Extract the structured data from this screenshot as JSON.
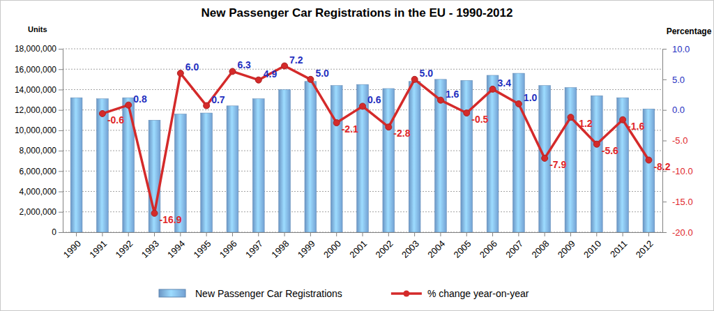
{
  "chart_data": {
    "type": "bar",
    "title": "New Passenger Car Registrations in the EU - 1990-2012",
    "y_label": "Units",
    "y2_label": "Percentage",
    "categories": [
      "1990",
      "1991",
      "1992",
      "1993",
      "1994",
      "1995",
      "1996",
      "1997",
      "1998",
      "1999",
      "2000",
      "2001",
      "2002",
      "2003",
      "2004",
      "2005",
      "2006",
      "2007",
      "2008",
      "2009",
      "2010",
      "2011",
      "2012"
    ],
    "series": [
      {
        "name": "New Passenger Car Registrations",
        "type": "bar",
        "color": "#7fb2ea",
        "values": [
          13200000,
          13100000,
          13200000,
          11000000,
          11600000,
          11700000,
          12400000,
          13100000,
          14000000,
          14800000,
          14400000,
          14500000,
          14100000,
          14800000,
          15000000,
          14900000,
          15400000,
          15600000,
          14400000,
          14200000,
          13400000,
          13200000,
          12100000
        ]
      },
      {
        "name": "% change year-on-year",
        "type": "line",
        "axis": "y2",
        "color": "#d42a2a",
        "marker": "circle",
        "values": [
          null,
          -0.6,
          0.8,
          -16.9,
          6.0,
          0.7,
          6.3,
          4.9,
          7.2,
          5.0,
          -2.1,
          0.6,
          -2.8,
          5.0,
          1.6,
          -0.5,
          3.4,
          1.0,
          -7.9,
          -1.2,
          -5.6,
          -1.6,
          -8.2
        ],
        "value_labels": [
          null,
          "-0.6",
          "0.8",
          "-16.9",
          "6.0",
          "0.7",
          "6.3",
          "4.9",
          "7.2",
          "5.0",
          "-2.1",
          "0.6",
          "-2.8",
          "5.0",
          "1.6",
          "-0.5",
          "3.4",
          "1.0",
          "-7.9",
          "-1.2",
          "-5.6",
          "-1.6",
          "-8.2"
        ]
      }
    ],
    "ylim": [
      0,
      18000000
    ],
    "yticks": [
      0,
      {
        "value": 2000000,
        "label": "2,000,000"
      },
      {
        "value": 4000000,
        "label": "4,000,000"
      },
      {
        "value": 6000000,
        "label": "6,000,000"
      },
      {
        "value": 8000000,
        "label": "8,000,000"
      },
      {
        "value": 10000000,
        "label": "10,000,000"
      },
      {
        "value": 12000000,
        "label": "12,000,000"
      },
      {
        "value": 14000000,
        "label": "14,000,000"
      },
      {
        "value": 16000000,
        "label": "16,000,000"
      },
      {
        "value": 18000000,
        "label": "18,000,000"
      }
    ],
    "y2lim": [
      -20,
      10
    ],
    "y2ticks": [
      {
        "value": -20,
        "label": "-20.0"
      },
      {
        "value": -15,
        "label": "-15.0"
      },
      {
        "value": -10,
        "label": "-10.0"
      },
      {
        "value": -5,
        "label": "-5.0"
      },
      {
        "value": 0,
        "label": "0.0"
      },
      {
        "value": 5,
        "label": "5.0"
      },
      {
        "value": 10,
        "label": "10.0"
      }
    ],
    "grid": true,
    "legend": "bottom",
    "data_labels": true
  }
}
